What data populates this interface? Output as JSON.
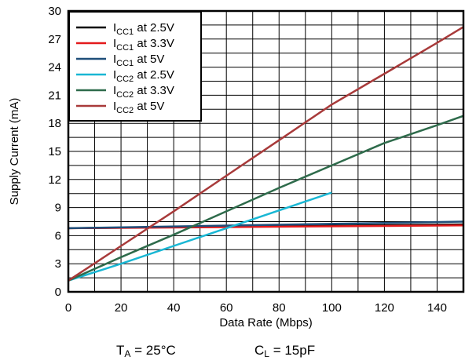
{
  "chart_data": {
    "type": "line",
    "title": "",
    "xlabel": "Data Rate (Mbps)",
    "ylabel": "Supply Current (mA)",
    "xlim": [
      0,
      150
    ],
    "ylim": [
      0,
      30
    ],
    "xticks": [
      0,
      20,
      40,
      60,
      80,
      100,
      120,
      140
    ],
    "yticks": [
      0,
      3,
      6,
      9,
      12,
      15,
      18,
      21,
      24,
      27,
      30
    ],
    "xtick_labels": [
      "0",
      "20",
      "40",
      "60",
      "80",
      "100",
      "120",
      "140"
    ],
    "ytick_labels": [
      "0",
      "3",
      "6",
      "9",
      "12",
      "15",
      "18",
      "21",
      "24",
      "27",
      "30"
    ],
    "grid": true,
    "legend_position": "top-left",
    "series": [
      {
        "name": "ICC1 at 2.5V",
        "sym": "I",
        "sub": "CC1",
        "rest": " at 2.5V",
        "color": "#000000",
        "x": [
          0,
          150
        ],
        "y": [
          6.8,
          7.2
        ]
      },
      {
        "name": "ICC1 at 3.3V",
        "sym": "I",
        "sub": "CC1",
        "rest": " at 3.3V",
        "color": "#e31a1c",
        "x": [
          0,
          150
        ],
        "y": [
          6.8,
          7.1
        ]
      },
      {
        "name": "ICC1 at 5V",
        "sym": "I",
        "sub": "CC1",
        "rest": " at 5V",
        "color": "#1f4e79",
        "x": [
          0,
          150
        ],
        "y": [
          6.8,
          7.5
        ]
      },
      {
        "name": "ICC2 at 2.5V",
        "sym": "I",
        "sub": "CC2",
        "rest": " at 2.5V",
        "color": "#19b7d4",
        "x": [
          0,
          20,
          40,
          60,
          80,
          100
        ],
        "y": [
          1.2,
          3.0,
          4.9,
          6.8,
          8.7,
          10.6
        ]
      },
      {
        "name": "ICC2 at 3.3V",
        "sym": "I",
        "sub": "CC2",
        "rest": " at 3.3V",
        "color": "#2e6b4b",
        "x": [
          0,
          20,
          40,
          60,
          80,
          100,
          120,
          140,
          150
        ],
        "y": [
          1.2,
          3.7,
          6.1,
          8.6,
          11.1,
          13.5,
          15.9,
          17.8,
          18.8
        ]
      },
      {
        "name": "ICC2 at 5V",
        "sym": "I",
        "sub": "CC2",
        "rest": " at 5V",
        "color": "#a83a3a",
        "x": [
          0,
          20,
          40,
          60,
          80,
          100,
          120,
          140,
          150
        ],
        "y": [
          1.2,
          4.9,
          8.6,
          12.4,
          16.2,
          20.0,
          23.3,
          26.6,
          28.3
        ]
      }
    ]
  },
  "conditions": {
    "ta_sym": "T",
    "ta_sub": "A",
    "ta_rest": " = 25°C",
    "cl_sym": "C",
    "cl_sub": "L",
    "cl_rest": " = 15pF"
  }
}
